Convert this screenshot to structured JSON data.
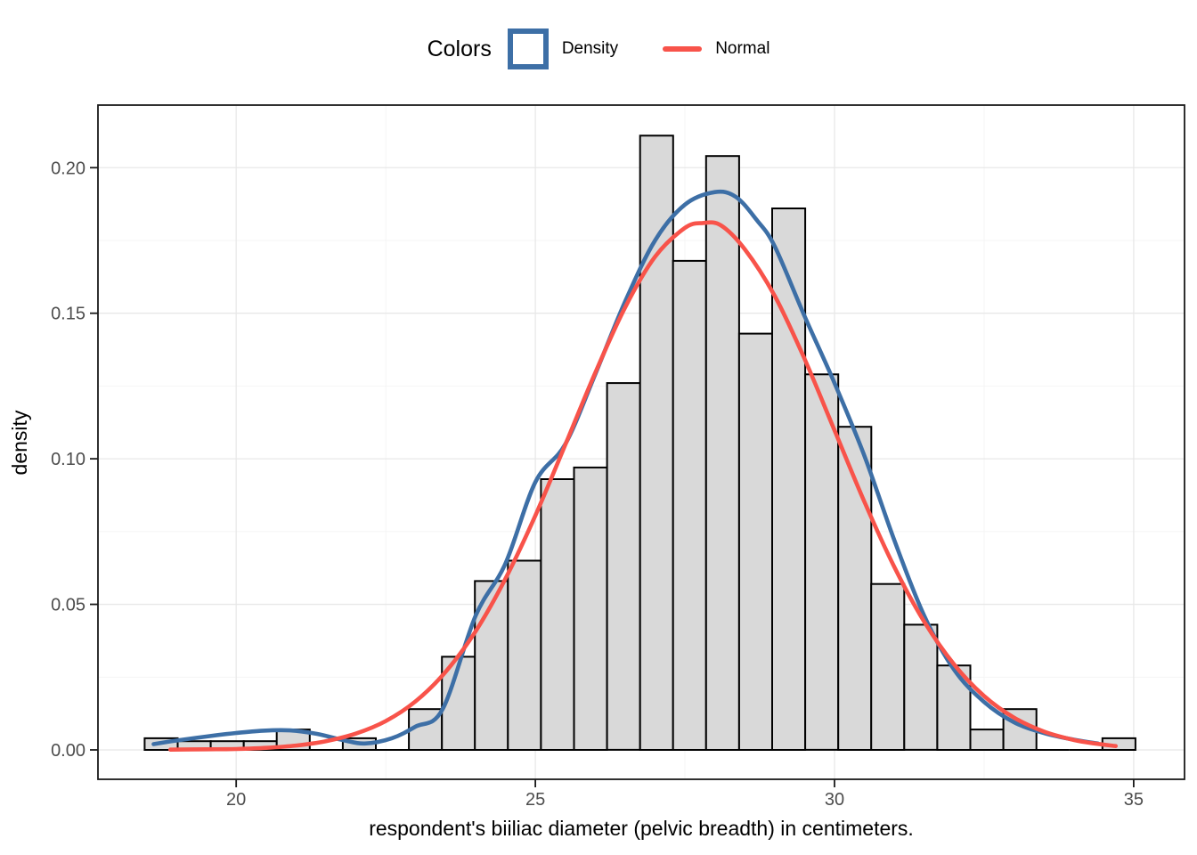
{
  "legend": {
    "title": "Colors",
    "items": [
      {
        "label": "Density",
        "key": "square-outline",
        "color": "#3d6fa6"
      },
      {
        "label": "Normal",
        "key": "line",
        "color": "#f8534a"
      }
    ]
  },
  "axes": {
    "x": {
      "title": "respondent's biiliac diameter (pelvic breadth) in centimeters.",
      "range": [
        17.69,
        35.85
      ],
      "ticks": [
        20,
        25,
        30,
        35
      ],
      "tick_labels": [
        "20",
        "25",
        "30",
        "35"
      ],
      "minor_ticks": [
        22.5,
        27.5,
        32.5
      ]
    },
    "y": {
      "title": "density",
      "range": [
        -0.0101,
        0.2215
      ],
      "ticks": [
        0,
        0.05,
        0.1,
        0.15,
        0.2
      ],
      "tick_labels": [
        "0.00",
        "0.05",
        "0.10",
        "0.15",
        "0.20"
      ],
      "minor_ticks": [
        0.025,
        0.075,
        0.125,
        0.175
      ]
    }
  },
  "chart_data": {
    "type": "bar",
    "subtype": "histogram-with-density-and-normal-curves",
    "title": "",
    "xlabel": "respondent's biiliac diameter (pelvic breadth) in centimeters.",
    "ylabel": "density",
    "grid": "on",
    "legend_position": "top-center",
    "histogram": {
      "bin_start": 18.47,
      "bin_width": 0.552,
      "densities": [
        0.004,
        0.003,
        0.003,
        0.003,
        0.007,
        0,
        0.004,
        0,
        0.014,
        0.032,
        0.058,
        0.065,
        0.093,
        0.097,
        0.126,
        0.211,
        0.168,
        0.204,
        0.143,
        0.186,
        0.129,
        0.111,
        0.057,
        0.043,
        0.029,
        0.007,
        0.014,
        0,
        0,
        0.004
      ]
    },
    "series": [
      {
        "name": "Density",
        "type": "line",
        "points": [
          [
            18.62,
            0.002
          ],
          [
            19.0,
            0.0032
          ],
          [
            19.5,
            0.0046
          ],
          [
            20.0,
            0.0058
          ],
          [
            20.45,
            0.0066
          ],
          [
            20.9,
            0.0067
          ],
          [
            21.35,
            0.0055
          ],
          [
            21.8,
            0.0033
          ],
          [
            22.15,
            0.0022
          ],
          [
            22.6,
            0.004
          ],
          [
            23.0,
            0.008
          ],
          [
            23.45,
            0.014
          ],
          [
            24.0,
            0.046
          ],
          [
            24.5,
            0.064
          ],
          [
            25.0,
            0.092
          ],
          [
            25.5,
            0.105
          ],
          [
            26.0,
            0.129
          ],
          [
            26.5,
            0.154
          ],
          [
            27.0,
            0.175
          ],
          [
            27.5,
            0.1873
          ],
          [
            28.0,
            0.1916
          ],
          [
            28.35,
            0.19
          ],
          [
            28.7,
            0.182
          ],
          [
            29.0,
            0.173
          ],
          [
            29.5,
            0.149
          ],
          [
            30.0,
            0.126
          ],
          [
            30.5,
            0.101
          ],
          [
            31.0,
            0.072
          ],
          [
            31.5,
            0.046
          ],
          [
            32.0,
            0.0275
          ],
          [
            32.5,
            0.0165
          ],
          [
            33.0,
            0.0095
          ],
          [
            33.5,
            0.0058
          ],
          [
            34.0,
            0.0035
          ],
          [
            34.4,
            0.0022
          ]
        ]
      },
      {
        "name": "Normal",
        "type": "line",
        "mean": 27.8,
        "sd": 2.2,
        "peak_density": 0.181,
        "points": [
          [
            18.9,
            0.0001
          ],
          [
            19.5,
            0.0002
          ],
          [
            20.0,
            0.0003
          ],
          [
            20.5,
            0.0007
          ],
          [
            21.0,
            0.0015
          ],
          [
            21.5,
            0.003
          ],
          [
            22.0,
            0.0056
          ],
          [
            22.5,
            0.0099
          ],
          [
            23.0,
            0.0167
          ],
          [
            23.5,
            0.0268
          ],
          [
            24.0,
            0.0407
          ],
          [
            24.5,
            0.0588
          ],
          [
            25.0,
            0.0805
          ],
          [
            25.5,
            0.1048
          ],
          [
            26.0,
            0.1295
          ],
          [
            26.5,
            0.152
          ],
          [
            27.0,
            0.1694
          ],
          [
            27.5,
            0.1793
          ],
          [
            27.8,
            0.181
          ],
          [
            28.1,
            0.1802
          ],
          [
            28.5,
            0.172
          ],
          [
            29.0,
            0.156
          ],
          [
            29.5,
            0.1343
          ],
          [
            30.0,
            0.1098
          ],
          [
            30.5,
            0.0852
          ],
          [
            31.0,
            0.0628
          ],
          [
            31.5,
            0.044
          ],
          [
            32.0,
            0.0293
          ],
          [
            32.5,
            0.0185
          ],
          [
            33.0,
            0.0111
          ],
          [
            33.5,
            0.0063
          ],
          [
            34.0,
            0.0034
          ],
          [
            34.35,
            0.0022
          ],
          [
            34.7,
            0.0013
          ]
        ]
      }
    ]
  },
  "colors": {
    "bar_fill": "#d9d9d9",
    "bar_stroke": "#000000",
    "density_line": "#3d6fa6",
    "normal_line": "#f8534a",
    "grid_major": "#e8e8e8",
    "grid_minor": "#f4f4f4",
    "panel_border": "#1a1a1a",
    "tick_label": "#4d4d4d",
    "axis_title": "#000000",
    "background": "#ffffff"
  }
}
